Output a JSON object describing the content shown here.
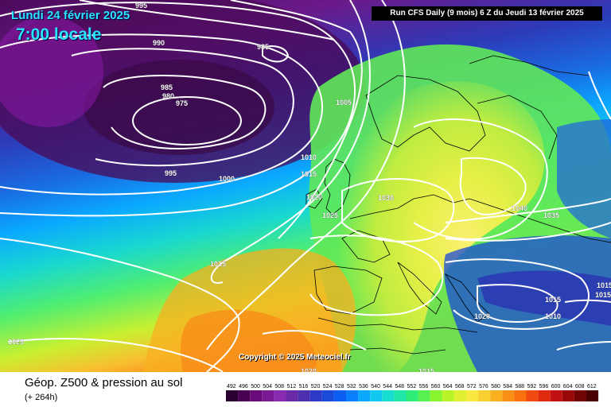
{
  "header": {
    "date": "Lundi 24 février 2025",
    "time": "7:00 locale",
    "run": "Run CFS Daily (9 mois) 6 Z du Jeudi 13 février 2025"
  },
  "copyright": "Copyright © 2025 Meteociel.fr",
  "footer": {
    "title": "Géop. Z500 & pression au sol",
    "subtitle": "(+ 264h)"
  },
  "isobar_labels": [
    "995",
    "990",
    "985",
    "985",
    "980",
    "975",
    "995",
    "1000",
    "1005",
    "1010",
    "1015",
    "1020",
    "1025",
    "1030",
    "1040",
    "1035",
    "1015",
    "1025",
    "1020",
    "1015",
    "1020",
    "1015",
    "1010",
    "1015",
    "1015"
  ],
  "scale": {
    "ticks": [
      "492",
      "496",
      "500",
      "504",
      "508",
      "512",
      "516",
      "520",
      "524",
      "528",
      "532",
      "536",
      "540",
      "544",
      "548",
      "552",
      "556",
      "560",
      "564",
      "568",
      "572",
      "576",
      "580",
      "584",
      "588",
      "592",
      "596",
      "600",
      "604",
      "608",
      "612"
    ],
    "colors": [
      "#2a0030",
      "#4a0055",
      "#6a0a7a",
      "#7a1a95",
      "#8a2ab0",
      "#6a2aa8",
      "#4c30b0",
      "#2e3ac6",
      "#1a4ad8",
      "#0c5ef0",
      "#0a80ff",
      "#0aa8ff",
      "#10c8f0",
      "#18dcd0",
      "#20e6a8",
      "#30ec78",
      "#58f050",
      "#88f430",
      "#b8f428",
      "#e0f030",
      "#f8e840",
      "#f8d030",
      "#f8b020",
      "#f89018",
      "#f87010",
      "#f04a10",
      "#e02a10",
      "#c01010",
      "#980808",
      "#700404",
      "#4a0000"
    ]
  },
  "colors": {
    "accent": "#29e6ff"
  }
}
